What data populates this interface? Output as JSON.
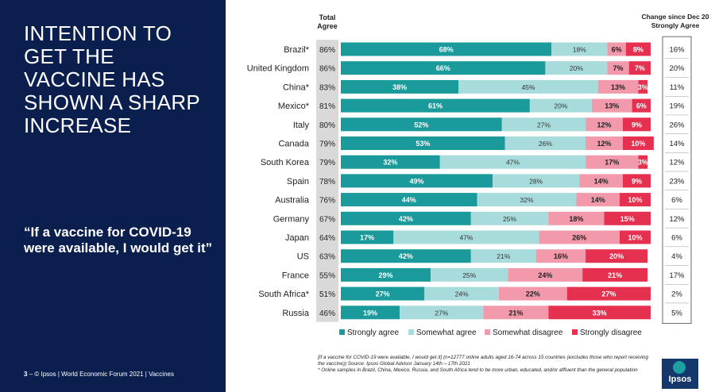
{
  "slide": {
    "title": "INTENTION TO GET THE VACCINE HAS SHOWN A SHARP INCREASE",
    "quote": "“If a vaccine for COVID-19 were available, I would get it”",
    "footer_page": "3",
    "footer_text": "– © Ipsos | World Economic Forum 2021 | Vaccines",
    "footnote_1": "[If a vaccine for COVID-19 were available, I would get it] (n=12777 online adults aged 16-74 across 15 countries (excludes those who report receiving the vaccine)) Source: Ipsos Global Advisor January 14th – 17th 2021",
    "footnote_2": "* Online samples in Brazil, China, Mexico, Russia, and South Africa tend to be more urban, educated, and/or affluent than the general population",
    "logo_text": "Ipsos"
  },
  "chart_data": {
    "type": "bar",
    "orientation": "horizontal",
    "stacked": true,
    "total_agree_header": "Total Agree",
    "change_header": "Change since Dec 20 Strongly Agree",
    "categories": [
      "Brazil*",
      "United Kingdom",
      "China*",
      "Mexico*",
      "Italy",
      "Canada",
      "South Korea",
      "Spain",
      "Australia",
      "Germany",
      "Japan",
      "US",
      "France",
      "South Africa*",
      "Russia"
    ],
    "total_agree": [
      "86%",
      "86%",
      "83%",
      "81%",
      "80%",
      "79%",
      "79%",
      "78%",
      "76%",
      "67%",
      "64%",
      "63%",
      "55%",
      "51%",
      "46%"
    ],
    "change": [
      "16%",
      "20%",
      "11%",
      "19%",
      "26%",
      "14%",
      "12%",
      "23%",
      "6%",
      "12%",
      "6%",
      "4%",
      "17%",
      "2%",
      "5%"
    ],
    "series": [
      {
        "name": "Strongly agree",
        "color": "#1a9a9a",
        "label_color": "#ffffff",
        "values": [
          68,
          66,
          38,
          61,
          52,
          53,
          32,
          49,
          44,
          42,
          17,
          42,
          29,
          27,
          19
        ]
      },
      {
        "name": "Somewhat agree",
        "color": "#a8dcdc",
        "label_color": "#333333",
        "values": [
          18,
          20,
          45,
          20,
          27,
          26,
          47,
          28,
          32,
          25,
          47,
          21,
          25,
          24,
          27
        ]
      },
      {
        "name": "Somewhat disagree",
        "color": "#f29aac",
        "label_color": "#222222",
        "values": [
          6,
          7,
          13,
          13,
          12,
          12,
          17,
          14,
          14,
          18,
          26,
          16,
          24,
          22,
          21
        ]
      },
      {
        "name": "Strongly disagree",
        "color": "#e5304f",
        "label_color": "#ffffff",
        "values": [
          8,
          7,
          3,
          6,
          9,
          10,
          3,
          9,
          10,
          15,
          10,
          20,
          21,
          27,
          33
        ]
      }
    ],
    "xlim": [
      0,
      100
    ],
    "legend_position": "bottom"
  }
}
